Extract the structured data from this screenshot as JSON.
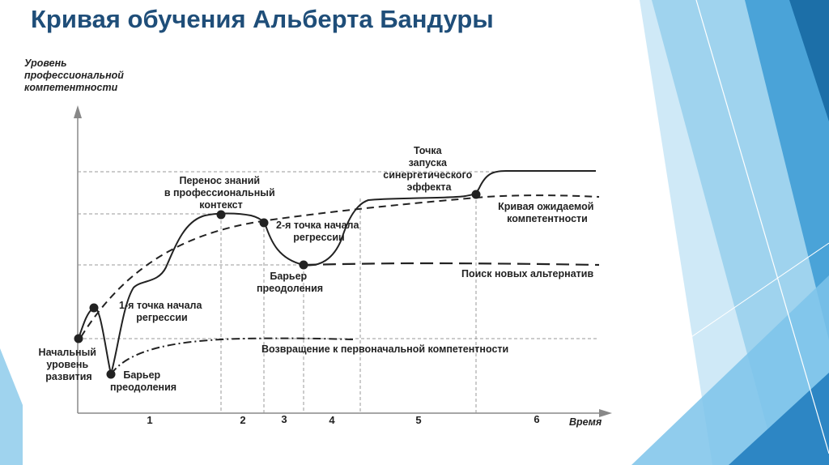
{
  "title": "Кривая обучения Альберта Бандуры",
  "axes": {
    "y_label": [
      "Уровень",
      "профессиональной",
      "компетентности"
    ],
    "x_label": "Время"
  },
  "phases": [
    "1",
    "2",
    "3",
    "4",
    "5",
    "6"
  ],
  "labels": {
    "initial_level": [
      "Начальный",
      "уровень",
      "развития"
    ],
    "barrier_1": [
      "Барьер",
      "преодоления"
    ],
    "regression_1": [
      "1-я точка начала",
      "регрессии"
    ],
    "transfer": [
      "Перенос знаний",
      "в профессиональный",
      "контекст"
    ],
    "regression_2": [
      "2-я точка начала",
      "регрессии"
    ],
    "barrier_2": [
      "Барьер",
      "преодоления"
    ],
    "synergy": [
      "Точка",
      "запуска",
      "синергетического",
      "эффекта"
    ],
    "expected_curve": [
      "Кривая ожидаемой",
      "компетентности"
    ],
    "alternatives": "Поиск новых альтернатив",
    "return": "Возвращение к первоначальной компетентности"
  },
  "colors": {
    "title": "#1f4e79",
    "accent_light": "#9fd3ee",
    "accent_mid": "#4aa3d8",
    "accent_dark": "#1c6fa8",
    "line": "#222222"
  }
}
